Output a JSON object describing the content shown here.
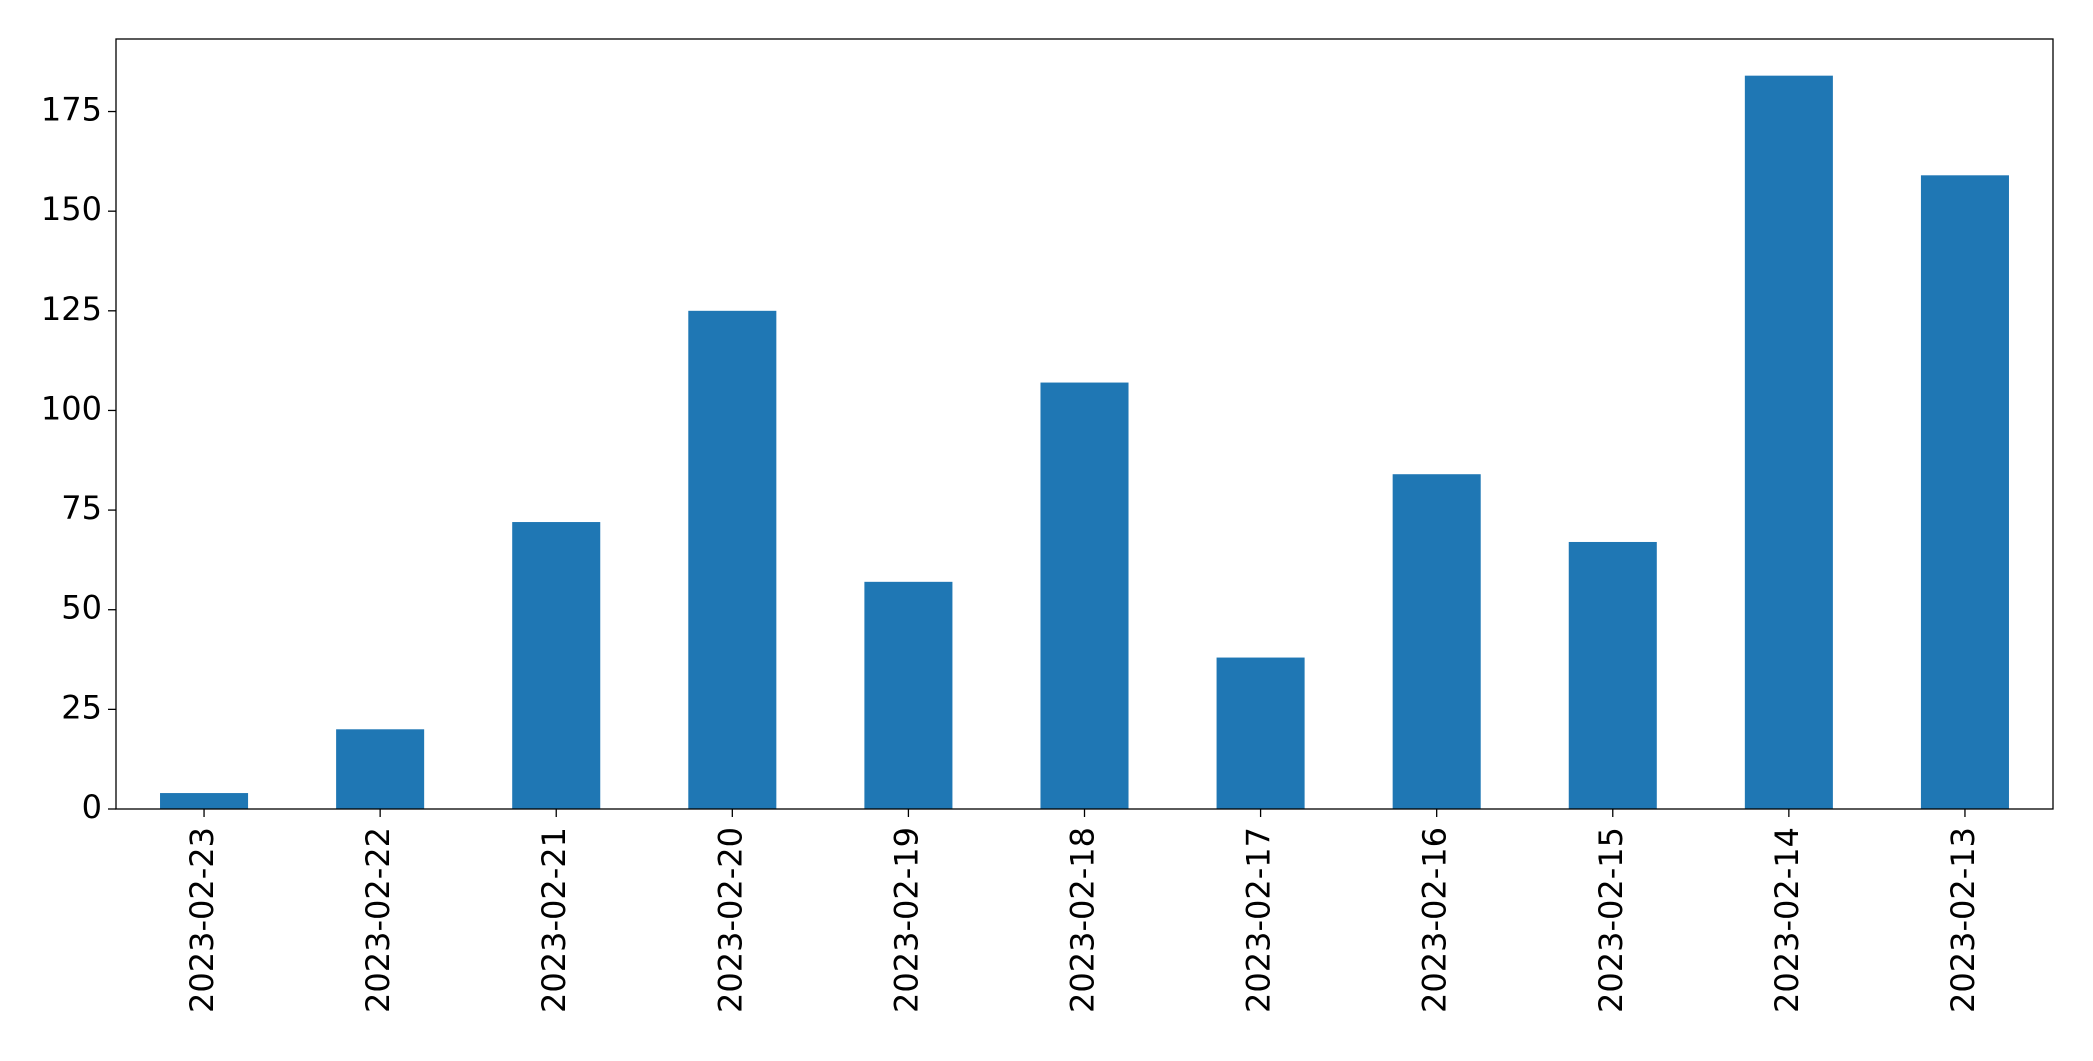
{
  "chart_data": {
    "type": "bar",
    "categories": [
      "2023-02-23",
      "2023-02-22",
      "2023-02-21",
      "2023-02-20",
      "2023-02-19",
      "2023-02-18",
      "2023-02-17",
      "2023-02-16",
      "2023-02-15",
      "2023-02-14",
      "2023-02-13"
    ],
    "values": [
      4,
      20,
      72,
      125,
      57,
      107,
      38,
      84,
      67,
      184,
      159
    ],
    "color": "#1f77b4",
    "ylim": [
      0,
      193.2
    ],
    "yticks": [
      0,
      25,
      50,
      75,
      100,
      125,
      150,
      175
    ],
    "grid": false
  }
}
